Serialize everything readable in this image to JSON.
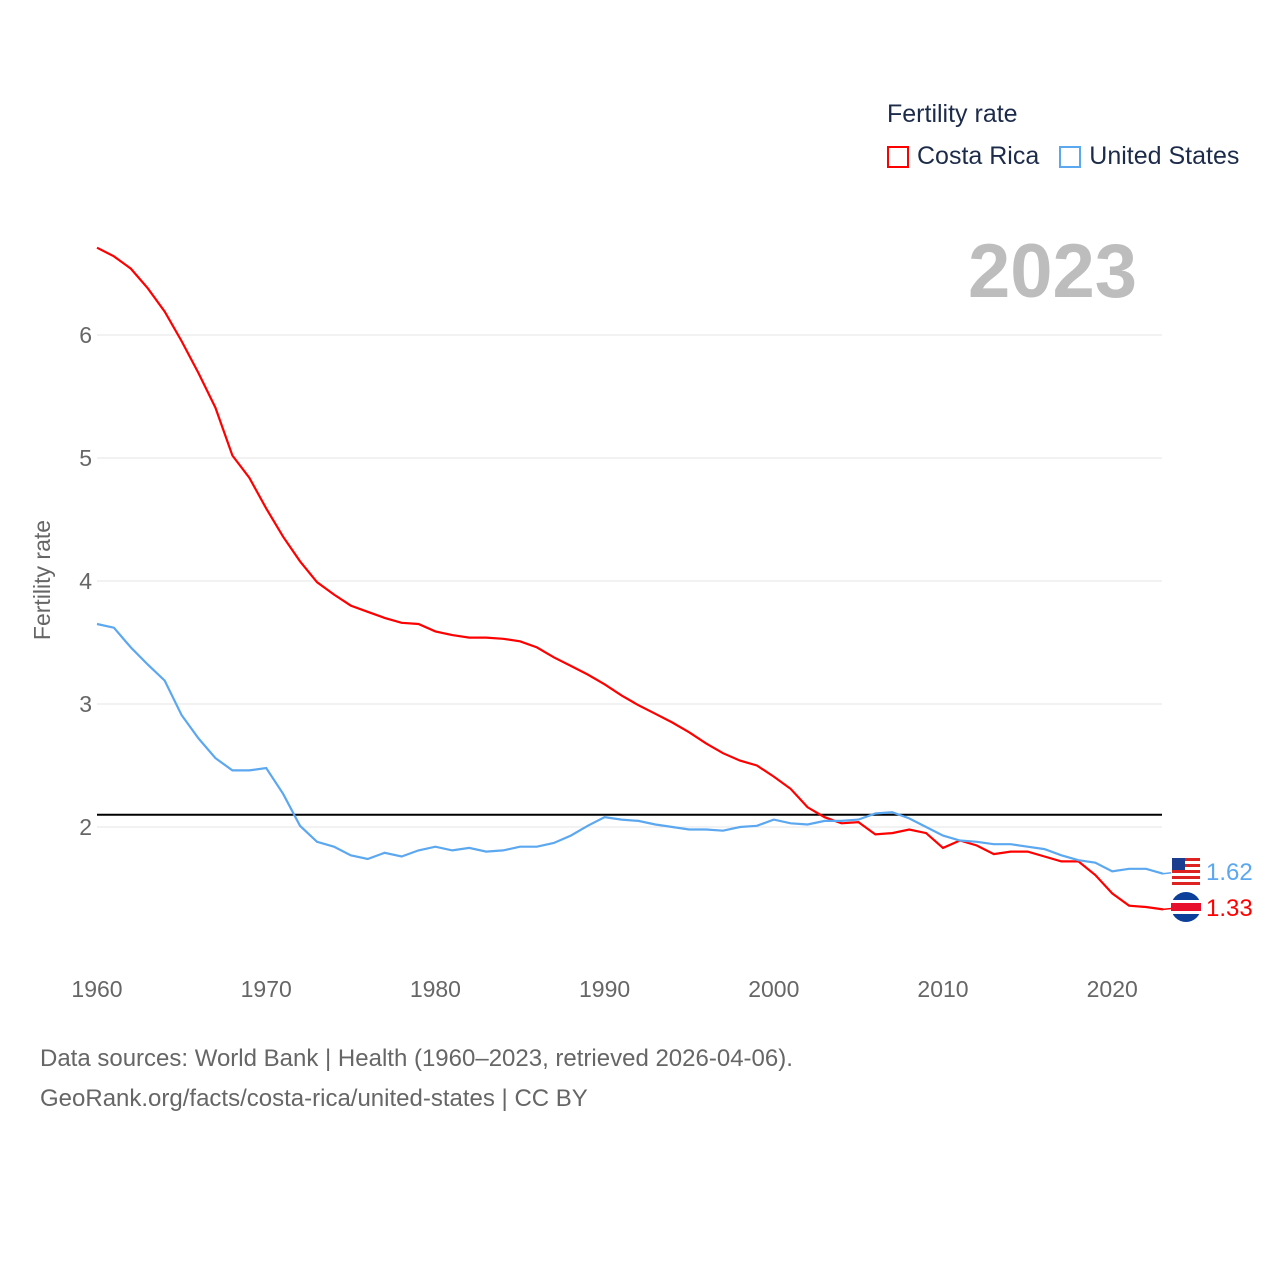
{
  "chart_data": {
    "type": "line",
    "ylabel": "Fertility rate",
    "xlabel": "",
    "xlim": [
      1960,
      2023
    ],
    "ylim": [
      1.2,
      6.8
    ],
    "x_ticks": [
      1960,
      1970,
      1980,
      1990,
      2000,
      2010,
      2020
    ],
    "y_ticks": [
      2,
      3,
      4,
      5,
      6
    ],
    "grid": true,
    "reference_line": 2.1,
    "legend_title": "Fertility rate",
    "legend_position": "top-right",
    "year_label": "2023",
    "x": [
      1960,
      1961,
      1962,
      1963,
      1964,
      1965,
      1966,
      1967,
      1968,
      1969,
      1970,
      1971,
      1972,
      1973,
      1974,
      1975,
      1976,
      1977,
      1978,
      1979,
      1980,
      1981,
      1982,
      1983,
      1984,
      1985,
      1986,
      1987,
      1988,
      1989,
      1990,
      1991,
      1992,
      1993,
      1994,
      1995,
      1996,
      1997,
      1998,
      1999,
      2000,
      2001,
      2002,
      2003,
      2004,
      2005,
      2006,
      2007,
      2008,
      2009,
      2010,
      2011,
      2012,
      2013,
      2014,
      2015,
      2016,
      2017,
      2018,
      2019,
      2020,
      2021,
      2022,
      2023
    ],
    "series": [
      {
        "name": "Costa Rica",
        "color": "#ff0000",
        "end_label": "1.33",
        "values": [
          6.71,
          6.64,
          6.54,
          6.38,
          6.19,
          5.95,
          5.69,
          5.41,
          5.02,
          4.84,
          4.59,
          4.36,
          4.16,
          3.99,
          3.89,
          3.8,
          3.75,
          3.7,
          3.66,
          3.65,
          3.59,
          3.56,
          3.54,
          3.54,
          3.53,
          3.51,
          3.46,
          3.38,
          3.31,
          3.24,
          3.16,
          3.07,
          2.99,
          2.92,
          2.85,
          2.77,
          2.68,
          2.6,
          2.54,
          2.5,
          2.41,
          2.31,
          2.16,
          2.08,
          2.03,
          2.04,
          1.94,
          1.95,
          1.98,
          1.95,
          1.83,
          1.89,
          1.85,
          1.78,
          1.8,
          1.8,
          1.76,
          1.72,
          1.72,
          1.61,
          1.46,
          1.36,
          1.35,
          1.33
        ]
      },
      {
        "name": "United States",
        "color": "#5ba7f0",
        "end_label": "1.62",
        "values": [
          3.65,
          3.62,
          3.46,
          3.32,
          3.19,
          2.91,
          2.72,
          2.56,
          2.46,
          2.46,
          2.48,
          2.27,
          2.01,
          1.88,
          1.84,
          1.77,
          1.74,
          1.79,
          1.76,
          1.81,
          1.84,
          1.81,
          1.83,
          1.8,
          1.81,
          1.84,
          1.84,
          1.87,
          1.93,
          2.01,
          2.08,
          2.06,
          2.05,
          2.02,
          2.0,
          1.98,
          1.98,
          1.97,
          2.0,
          2.01,
          2.06,
          2.03,
          2.02,
          2.05,
          2.05,
          2.06,
          2.11,
          2.12,
          2.07,
          2.0,
          1.93,
          1.89,
          1.88,
          1.86,
          1.86,
          1.84,
          1.82,
          1.77,
          1.73,
          1.71,
          1.64,
          1.66,
          1.66,
          1.62
        ]
      }
    ]
  },
  "footer": {
    "sources": "Data sources: World Bank | Health (1960–2023, retrieved 2026-04-06).",
    "link": "GeoRank.org/facts/costa-rica/united-states | CC BY"
  }
}
